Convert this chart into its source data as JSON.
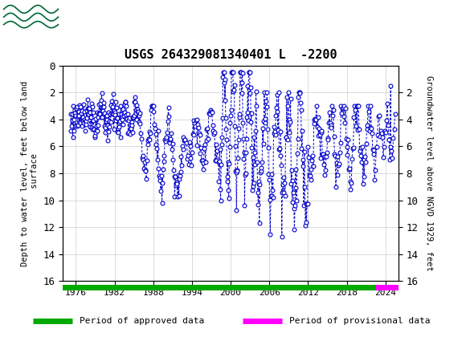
{
  "title": "USGS 264329081340401 L  -2200",
  "header_color": "#006633",
  "ylabel_left": "Depth to water level, feet below land\n surface",
  "ylabel_right": "Groundwater level above NGVD 1929, feet",
  "xlim": [
    1974,
    2026
  ],
  "ylim_left": [
    16,
    0
  ],
  "ylim_right": [
    16,
    0
  ],
  "yticks_left": [
    0,
    2,
    4,
    6,
    8,
    10,
    12,
    14,
    16
  ],
  "yticks_right": [
    2,
    4,
    6,
    8,
    10,
    12,
    14,
    16
  ],
  "xticks": [
    1976,
    1982,
    1988,
    1994,
    2000,
    2006,
    2012,
    2018,
    2024
  ],
  "data_color": "#0000CC",
  "legend_approved_color": "#00AA00",
  "legend_provisional_color": "#FF00FF",
  "legend_approved_label": "Period of approved data",
  "legend_provisional_label": "Period of provisional data",
  "approved_xrange": [
    1974,
    2022.5
  ],
  "provisional_xrange": [
    2022.5,
    2026
  ],
  "fig_width": 5.8,
  "fig_height": 4.3,
  "dpi": 100
}
